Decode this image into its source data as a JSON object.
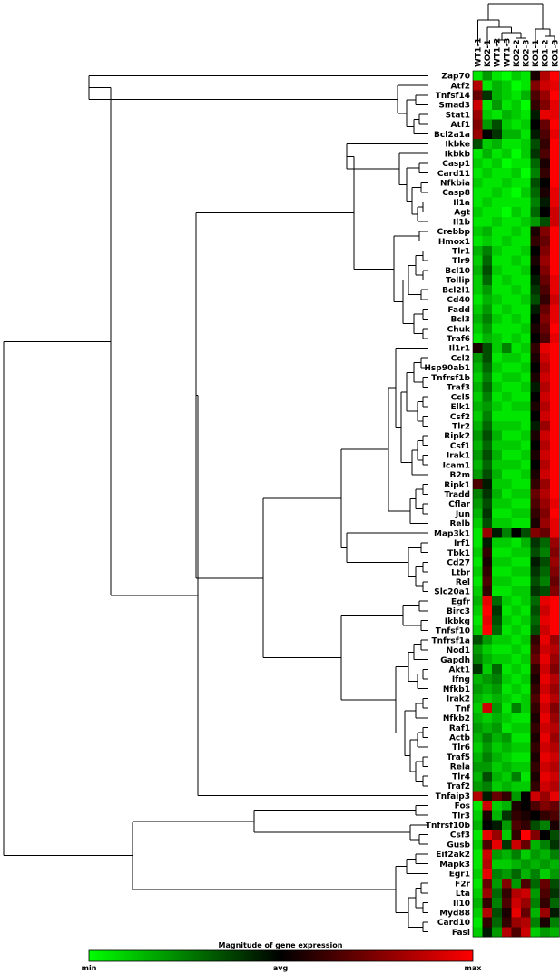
{
  "chart_data": {
    "type": "heatmap",
    "samples": [
      "WT1-1",
      "KO2-1",
      "WT1-2",
      "WT1-3",
      "KO2-2",
      "KO2-3",
      "KO1-1",
      "KO1-2",
      "KO1-3"
    ],
    "genes": [
      "Zap70",
      "Atf2",
      "Tnfsf14",
      "Smad3",
      "Stat1",
      "Atf1",
      "Bcl2a1a",
      "Ikbke",
      "Ikbkb",
      "Casp1",
      "Card11",
      "Nfkbia",
      "Casp8",
      "Il1a",
      "Agt",
      "Il1b",
      "Crebbp",
      "Hmox1",
      "Tlr1",
      "Tlr9",
      "Bcl10",
      "Tollip",
      "Bcl2l1",
      "Cd40",
      "Fadd",
      "Bcl3",
      "Chuk",
      "Traf6",
      "Il1r1",
      "Ccl2",
      "Hsp90ab1",
      "Tnfrsf1b",
      "Traf3",
      "Ccl5",
      "Elk1",
      "Csf2",
      "Tlr2",
      "Ripk2",
      "Csf1",
      "Irak1",
      "Icam1",
      "B2m",
      "Ripk1",
      "Tradd",
      "Cflar",
      "Jun",
      "Relb",
      "Map3k1",
      "Irf1",
      "Tbk1",
      "Cd27",
      "Ltbr",
      "Rel",
      "Slc20a1",
      "Egfr",
      "Birc3",
      "Ikbkg",
      "Tnfsf10",
      "Tnfrsf1a",
      "Nod1",
      "Gapdh",
      "Akt1",
      "Ifng",
      "Nfkb1",
      "Irak2",
      "Tnf",
      "Nfkb2",
      "Raf1",
      "Actb",
      "Tlr6",
      "Traf5",
      "Rela",
      "Tlr4",
      "Traf2",
      "Tnfaip3",
      "Fos",
      "Tlr3",
      "Tnfrsf10b",
      "Csf3",
      "Gusb",
      "Eif2ak2",
      "Mapk3",
      "Egr1",
      "F2r",
      "Lta",
      "Il10",
      "Myd88",
      "Card10",
      "Fasl"
    ],
    "values": [
      [
        -0.9,
        -0.6,
        -0.9,
        -1.0,
        -0.8,
        -0.9,
        0.1,
        0.7,
        1.0
      ],
      [
        0.7,
        -0.9,
        -0.7,
        -0.8,
        -1.0,
        -0.9,
        0.5,
        0.8,
        0.9
      ],
      [
        0.4,
        -0.2,
        -0.7,
        -0.8,
        -0.9,
        -0.7,
        0.3,
        0.6,
        1.0
      ],
      [
        0.8,
        -0.9,
        -0.6,
        -0.9,
        -0.8,
        -1.0,
        0.2,
        0.5,
        0.9
      ],
      [
        0.6,
        -0.8,
        -0.9,
        -0.7,
        -0.8,
        -0.9,
        -0.1,
        0.9,
        0.9
      ],
      [
        0.5,
        -0.6,
        -0.3,
        -0.8,
        -0.9,
        -0.8,
        0.0,
        0.4,
        1.0
      ],
      [
        0.6,
        0.0,
        -0.2,
        -0.7,
        -0.7,
        -0.9,
        -0.1,
        0.3,
        0.9
      ],
      [
        -0.3,
        -0.8,
        -0.7,
        -0.9,
        -0.9,
        -0.8,
        -0.3,
        0.2,
        1.0
      ],
      [
        -0.9,
        -0.7,
        -0.9,
        -0.8,
        -1.0,
        -0.8,
        -0.2,
        0.3,
        1.0
      ],
      [
        -0.8,
        -0.9,
        -0.8,
        -1.0,
        -0.9,
        -0.9,
        -0.4,
        0.1,
        1.0
      ],
      [
        -0.9,
        -0.8,
        -0.9,
        -0.9,
        -0.8,
        -1.0,
        -0.5,
        0.2,
        1.0
      ],
      [
        -0.8,
        -0.9,
        -0.9,
        -0.8,
        -0.9,
        -0.9,
        -0.3,
        0.0,
        1.0
      ],
      [
        -0.9,
        -0.9,
        -0.8,
        -0.9,
        -1.0,
        -0.8,
        -0.4,
        0.1,
        0.9
      ],
      [
        -0.9,
        -0.8,
        -0.9,
        -0.9,
        -0.9,
        -0.9,
        -0.5,
        -0.1,
        0.9
      ],
      [
        -0.8,
        -0.9,
        -0.9,
        -1.0,
        -0.8,
        -0.9,
        -0.4,
        0.0,
        0.8
      ],
      [
        -0.9,
        -0.9,
        -0.8,
        -0.9,
        -0.9,
        -0.8,
        -0.6,
        -0.3,
        0.8
      ],
      [
        -0.8,
        -0.7,
        -0.9,
        -0.9,
        -0.8,
        -0.9,
        0.1,
        0.5,
        1.0
      ],
      [
        -0.9,
        -0.8,
        -0.9,
        -0.8,
        -0.9,
        -0.9,
        0.2,
        0.4,
        1.0
      ],
      [
        -0.7,
        -0.5,
        -0.8,
        -0.9,
        -0.9,
        -0.8,
        0.0,
        0.5,
        1.0
      ],
      [
        -0.8,
        -0.4,
        -0.9,
        -0.9,
        -0.8,
        -0.9,
        0.1,
        0.6,
        1.0
      ],
      [
        -0.7,
        -0.3,
        -0.8,
        -0.9,
        -0.9,
        -0.8,
        0.0,
        0.5,
        1.0
      ],
      [
        -0.8,
        -0.4,
        -0.9,
        -0.8,
        -0.9,
        -0.9,
        -0.1,
        0.4,
        0.9
      ],
      [
        -0.8,
        -0.6,
        -0.9,
        -0.9,
        -0.8,
        -0.9,
        -0.2,
        0.3,
        0.9
      ],
      [
        -0.9,
        -0.7,
        -0.8,
        -0.9,
        -0.9,
        -0.8,
        -0.3,
        0.2,
        0.8
      ],
      [
        -0.8,
        -0.6,
        -0.9,
        -0.8,
        -0.9,
        -0.9,
        -0.1,
        0.4,
        0.9
      ],
      [
        -0.7,
        -0.5,
        -0.8,
        -0.9,
        -0.8,
        -0.9,
        0.0,
        0.5,
        0.9
      ],
      [
        -0.8,
        -0.6,
        -0.9,
        -0.9,
        -0.9,
        -0.8,
        0.1,
        0.4,
        1.0
      ],
      [
        -0.9,
        -0.7,
        -0.8,
        -0.9,
        -0.8,
        -0.9,
        0.0,
        0.3,
        0.9
      ],
      [
        0.1,
        -0.3,
        -0.8,
        -0.5,
        -0.9,
        -0.8,
        0.2,
        0.9,
        1.0
      ],
      [
        -0.6,
        -0.3,
        -0.9,
        -0.8,
        -0.8,
        -0.9,
        0.1,
        0.8,
        1.0
      ],
      [
        -0.7,
        -0.4,
        -0.8,
        -0.9,
        -0.9,
        -0.8,
        0.0,
        0.7,
        1.0
      ],
      [
        -0.8,
        -0.5,
        -0.9,
        -0.8,
        -0.8,
        -0.9,
        0.1,
        0.8,
        1.0
      ],
      [
        -0.7,
        -0.4,
        -0.8,
        -0.9,
        -0.9,
        -0.8,
        -0.1,
        0.7,
        1.0
      ],
      [
        -0.8,
        -0.5,
        -0.9,
        -0.8,
        -0.9,
        -0.9,
        0.0,
        0.8,
        1.0
      ],
      [
        -0.7,
        -0.6,
        -0.8,
        -0.9,
        -0.8,
        -0.8,
        0.1,
        0.7,
        1.0
      ],
      [
        -0.8,
        -0.5,
        -0.9,
        -0.9,
        -0.9,
        -0.9,
        0.0,
        0.8,
        1.0
      ],
      [
        -0.7,
        -0.4,
        -0.8,
        -0.8,
        -0.8,
        -0.9,
        -0.1,
        0.6,
        1.0
      ],
      [
        -0.6,
        -0.3,
        -0.7,
        -0.9,
        -0.9,
        -0.8,
        0.1,
        0.8,
        1.0
      ],
      [
        -0.7,
        -0.4,
        -0.8,
        -0.8,
        -0.8,
        -0.9,
        0.0,
        0.7,
        1.0
      ],
      [
        -0.6,
        -0.3,
        -0.7,
        -0.9,
        -0.9,
        -0.8,
        0.1,
        0.8,
        1.0
      ],
      [
        -0.7,
        -0.4,
        -0.8,
        -0.8,
        -0.8,
        -0.9,
        0.0,
        0.7,
        1.0
      ],
      [
        -0.6,
        -0.3,
        -0.7,
        -0.9,
        -0.9,
        -0.8,
        0.1,
        0.8,
        1.0
      ],
      [
        0.3,
        -0.1,
        -0.8,
        -0.8,
        -0.9,
        -0.9,
        0.2,
        0.6,
        1.0
      ],
      [
        -0.5,
        -0.2,
        -0.7,
        -0.9,
        -0.8,
        -0.8,
        0.4,
        0.7,
        1.0
      ],
      [
        -0.6,
        -0.3,
        -0.8,
        -0.8,
        -0.9,
        -0.9,
        0.3,
        0.6,
        0.9
      ],
      [
        -0.7,
        -0.2,
        -0.9,
        -0.9,
        -0.8,
        -0.8,
        0.2,
        0.5,
        1.0
      ],
      [
        -0.8,
        -0.3,
        -0.8,
        -0.8,
        -0.9,
        -0.9,
        0.1,
        0.6,
        0.9
      ],
      [
        -0.9,
        0.6,
        -0.1,
        -0.5,
        0.0,
        -0.3,
        0.5,
        0.4,
        0.9
      ],
      [
        -0.9,
        -0.1,
        -0.8,
        -0.8,
        -0.9,
        -0.7,
        -0.2,
        -0.4,
        0.6
      ],
      [
        -0.8,
        0.2,
        -0.9,
        -0.9,
        -0.8,
        -0.8,
        -0.3,
        -0.5,
        0.5
      ],
      [
        -0.9,
        0.1,
        -0.8,
        -0.8,
        -0.9,
        -0.9,
        -0.1,
        -0.3,
        0.6
      ],
      [
        -0.8,
        0.2,
        -0.9,
        -0.9,
        -0.8,
        -0.8,
        -0.2,
        -0.4,
        0.5
      ],
      [
        -0.9,
        0.3,
        -0.8,
        -0.8,
        -0.9,
        -0.9,
        -0.3,
        -0.5,
        0.4
      ],
      [
        -0.8,
        0.2,
        -0.9,
        -0.9,
        -0.8,
        -0.8,
        -0.2,
        -0.3,
        0.5
      ],
      [
        -0.7,
        0.9,
        -0.4,
        -0.8,
        -0.9,
        -0.8,
        -0.4,
        0.9,
        1.0
      ],
      [
        -0.8,
        1.0,
        -0.2,
        -0.9,
        -0.8,
        -0.9,
        -0.3,
        0.8,
        1.0
      ],
      [
        -0.9,
        0.9,
        -0.3,
        -0.8,
        -0.9,
        -0.8,
        -0.4,
        0.9,
        1.0
      ],
      [
        -0.8,
        1.0,
        -0.4,
        -0.9,
        -0.8,
        -0.9,
        -0.3,
        0.8,
        1.0
      ],
      [
        -0.3,
        -0.6,
        -0.8,
        -0.8,
        -0.9,
        -0.8,
        0.2,
        0.9,
        0.6
      ],
      [
        -0.6,
        -0.8,
        -0.9,
        -0.9,
        -0.8,
        -0.9,
        0.3,
        0.8,
        0.7
      ],
      [
        -0.5,
        -0.7,
        -0.8,
        -0.8,
        -0.9,
        -0.8,
        0.4,
        0.9,
        0.6
      ],
      [
        -0.2,
        -0.8,
        -0.4,
        -0.9,
        -0.8,
        -0.9,
        0.2,
        0.8,
        0.5
      ],
      [
        -0.7,
        -0.6,
        -0.5,
        -0.8,
        -0.9,
        -0.8,
        0.1,
        0.9,
        0.7
      ],
      [
        -0.6,
        -0.7,
        -0.6,
        -0.9,
        -0.8,
        -0.9,
        0.2,
        0.8,
        0.6
      ],
      [
        -0.7,
        -0.8,
        -0.7,
        -0.8,
        -0.9,
        -0.8,
        0.3,
        0.9,
        0.7
      ],
      [
        -0.8,
        0.8,
        -0.6,
        -0.9,
        -0.5,
        -0.8,
        0.2,
        0.8,
        0.5
      ],
      [
        -0.7,
        -0.8,
        -0.7,
        -0.8,
        -0.9,
        -0.9,
        0.1,
        0.9,
        0.6
      ],
      [
        -0.6,
        -0.7,
        -0.6,
        -0.9,
        -0.8,
        -0.8,
        0.2,
        0.8,
        0.7
      ],
      [
        -0.7,
        -0.5,
        -0.7,
        -0.6,
        -0.9,
        -0.9,
        0.1,
        0.9,
        0.6
      ],
      [
        -0.8,
        -0.6,
        -0.8,
        -0.7,
        -0.8,
        -0.8,
        0.2,
        0.8,
        0.7
      ],
      [
        -0.7,
        -0.5,
        -0.7,
        -0.8,
        -0.9,
        -0.9,
        0.1,
        0.9,
        0.8
      ],
      [
        -0.6,
        -0.6,
        -0.8,
        -0.7,
        -0.8,
        -0.8,
        0.2,
        0.8,
        0.7
      ],
      [
        -0.7,
        -0.3,
        -0.7,
        -0.8,
        -0.5,
        -0.9,
        0.1,
        0.9,
        0.8
      ],
      [
        -0.6,
        -0.5,
        -0.8,
        -0.7,
        -0.8,
        -0.8,
        0.2,
        0.8,
        0.7
      ],
      [
        0.7,
        -0.1,
        0.4,
        0.2,
        -0.6,
        0.0,
        0.8,
        0.6,
        0.9
      ],
      [
        -0.9,
        0.8,
        -0.8,
        -0.7,
        0.1,
        0.0,
        0.3,
        0.5,
        0.4
      ],
      [
        -0.8,
        0.1,
        -0.7,
        -0.2,
        0.2,
        0.1,
        0.0,
        0.2,
        0.3
      ],
      [
        -0.7,
        0.0,
        -0.1,
        -0.6,
        0.3,
        0.2,
        -0.3,
        -0.5,
        0.1
      ],
      [
        -0.9,
        0.9,
        0.6,
        -0.8,
        0.2,
        1.0,
        0.5,
        0.0,
        -0.3
      ],
      [
        -0.8,
        0.3,
        0.9,
        -0.2,
        0.8,
        0.4,
        -0.7,
        -0.5,
        -0.2
      ],
      [
        -0.9,
        0.8,
        -0.6,
        -0.7,
        -0.5,
        -0.8,
        -0.6,
        -0.7,
        -0.5
      ],
      [
        -0.9,
        0.7,
        -0.8,
        -0.8,
        -0.7,
        -0.6,
        -0.7,
        -0.6,
        -0.7
      ],
      [
        -0.8,
        0.9,
        -0.5,
        -0.6,
        -0.4,
        -0.7,
        -0.5,
        -0.8,
        -0.6
      ],
      [
        -0.9,
        0.4,
        -0.6,
        0.5,
        -0.6,
        0.3,
        -0.4,
        0.4,
        -0.3
      ],
      [
        -0.8,
        0.6,
        -0.4,
        0.2,
        0.7,
        0.8,
        -0.6,
        0.3,
        -0.2
      ],
      [
        -0.7,
        0.2,
        -0.5,
        0.3,
        0.8,
        0.6,
        -0.5,
        0.2,
        -0.4
      ],
      [
        -0.8,
        0.7,
        -0.3,
        0.1,
        0.9,
        0.4,
        -0.7,
        0.6,
        -0.1
      ],
      [
        -0.9,
        0.2,
        -0.4,
        0.2,
        0.6,
        0.7,
        -0.5,
        0.1,
        -0.5
      ],
      [
        -0.8,
        -0.1,
        -0.6,
        0.7,
        0.3,
        0.8,
        -0.8,
        -0.6,
        -0.7
      ]
    ],
    "scale": {
      "title": "Magnitude of gene expression",
      "ticks": [
        "min",
        "avg",
        "max"
      ],
      "colors": {
        "min": "#00ff00",
        "avg": "#000000",
        "max": "#ff0000"
      }
    }
  }
}
